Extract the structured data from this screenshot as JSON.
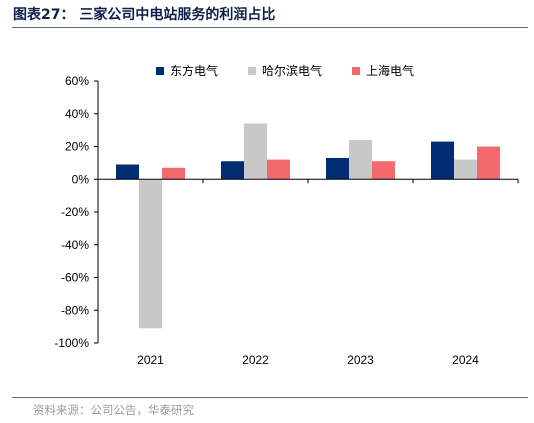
{
  "title": "图表27：  三家公司中电站服务的利润占比",
  "source": "资料来源：公司公告，华泰研究",
  "chart_data": {
    "type": "bar",
    "title": "",
    "xlabel": "",
    "ylabel": "",
    "categories": [
      "2021",
      "2022",
      "2023",
      "2024"
    ],
    "series": [
      {
        "name": "东方电气",
        "color": "#002d72",
        "values": [
          9,
          11,
          13,
          23
        ]
      },
      {
        "name": "哈尔滨电气",
        "color": "#c8c8c8",
        "values": [
          -91,
          34,
          24,
          12
        ]
      },
      {
        "name": "上海电气",
        "color": "#f4696b",
        "values": [
          7,
          12,
          11,
          20
        ]
      }
    ],
    "ylim": [
      -100,
      60
    ],
    "yticks": [
      60,
      40,
      20,
      0,
      -20,
      -40,
      -60,
      -80,
      -100
    ],
    "ytick_labels": [
      "60%",
      "40%",
      "20%",
      "0%",
      "-20%",
      "-40%",
      "-60%",
      "-80%",
      "-100%"
    ],
    "grid": false,
    "legend_position": "top"
  }
}
